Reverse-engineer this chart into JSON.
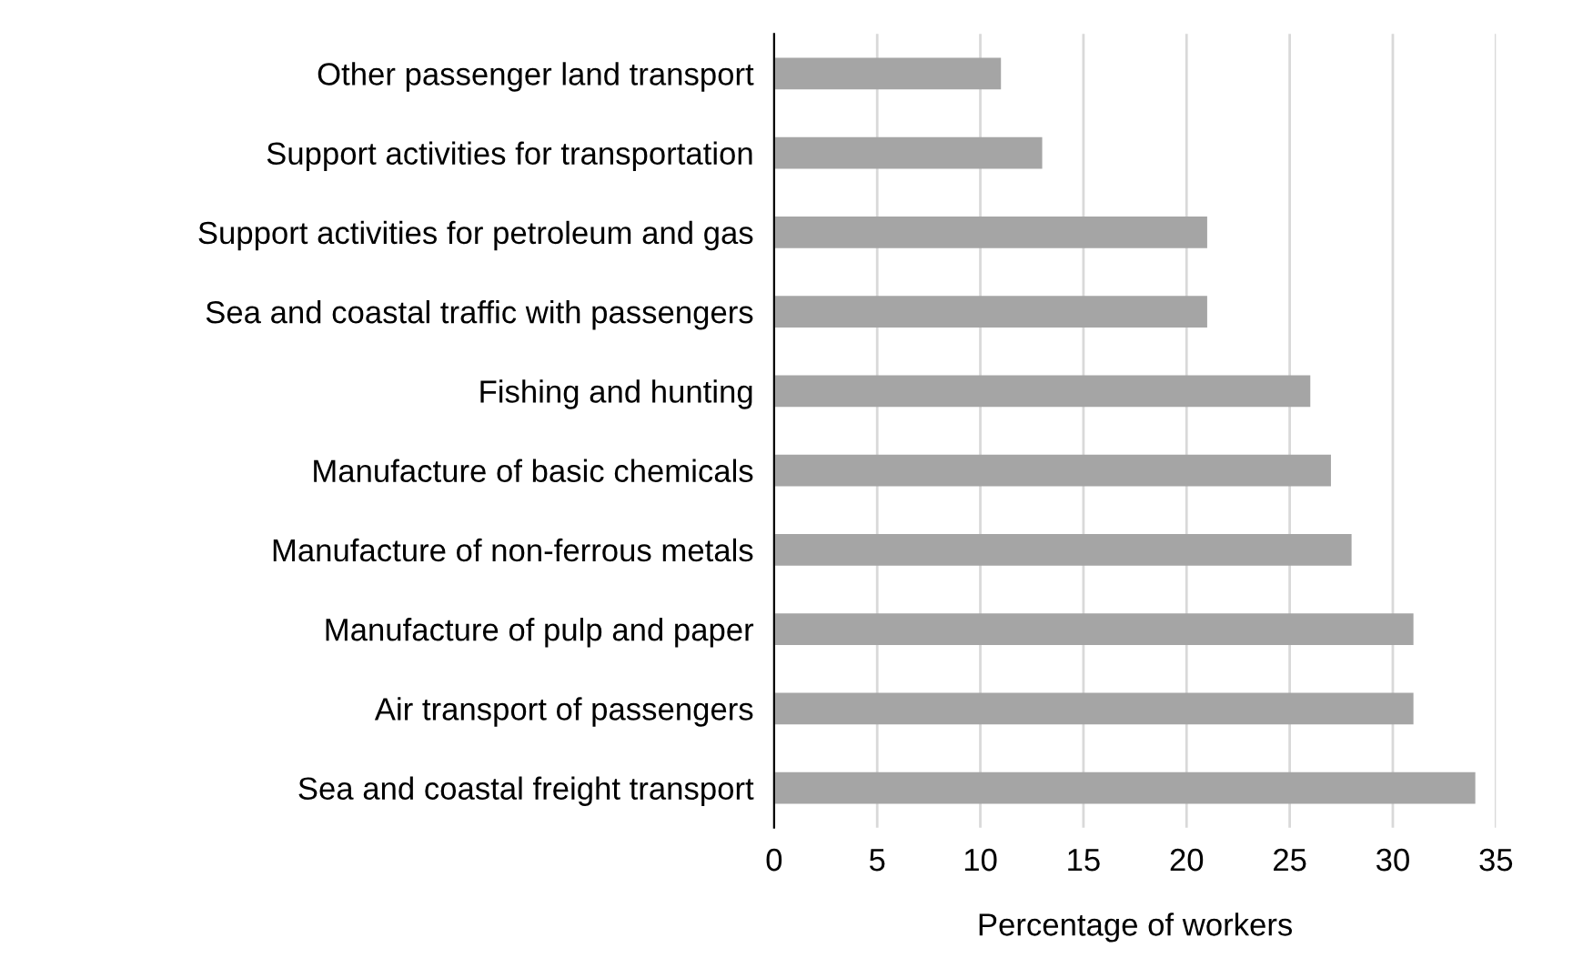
{
  "chart_data": {
    "type": "bar",
    "orientation": "horizontal",
    "xlabel": "Percentage of workers",
    "categories": [
      "Other passenger land transport",
      "Support activities for transportation",
      "Support activities for petroleum and gas",
      "Sea and coastal traffic with passengers",
      "Fishing and hunting",
      "Manufacture of basic chemicals",
      "Manufacture of non-ferrous metals",
      "Manufacture of pulp and paper",
      "Air transport of passengers",
      "Sea and coastal freight transport"
    ],
    "values": [
      11,
      13,
      21,
      21,
      26,
      27,
      28,
      31,
      31,
      34
    ],
    "color": "#a5a5a5",
    "xlim": [
      0,
      35
    ],
    "xticks": [
      0,
      5,
      10,
      15,
      20,
      25,
      30,
      35
    ],
    "grid": "x"
  }
}
